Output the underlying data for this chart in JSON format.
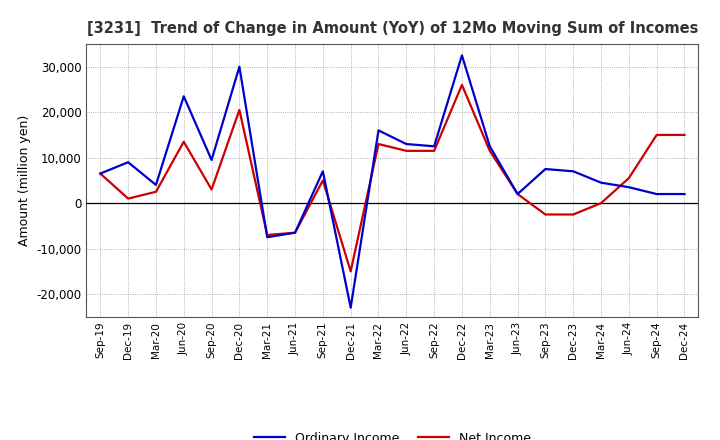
{
  "title": "[3231]  Trend of Change in Amount (YoY) of 12Mo Moving Sum of Incomes",
  "ylabel": "Amount (million yen)",
  "x_labels": [
    "Sep-19",
    "Dec-19",
    "Mar-20",
    "Jun-20",
    "Sep-20",
    "Dec-20",
    "Mar-21",
    "Jun-21",
    "Sep-21",
    "Dec-21",
    "Mar-22",
    "Jun-22",
    "Sep-22",
    "Dec-22",
    "Mar-23",
    "Jun-23",
    "Sep-23",
    "Dec-23",
    "Mar-24",
    "Jun-24",
    "Sep-24",
    "Dec-24"
  ],
  "ordinary_income": [
    6500,
    9000,
    4000,
    23500,
    9500,
    30000,
    -7500,
    -6500,
    7000,
    -23000,
    16000,
    13000,
    12500,
    32500,
    12500,
    2000,
    7500,
    7000,
    4500,
    3500,
    2000,
    2000
  ],
  "net_income": [
    6500,
    1000,
    2500,
    13500,
    3000,
    20500,
    -7000,
    -6500,
    5000,
    -15000,
    13000,
    11500,
    11500,
    26000,
    11500,
    2000,
    -2500,
    -2500,
    0,
    5500,
    15000,
    15000
  ],
  "ordinary_color": "#0000cc",
  "net_color": "#cc0000",
  "background_color": "#ffffff",
  "grid_color": "#999999",
  "ylim": [
    -25000,
    35000
  ],
  "yticks": [
    -20000,
    -10000,
    0,
    10000,
    20000,
    30000
  ],
  "legend_labels": [
    "Ordinary Income",
    "Net Income"
  ],
  "title_color": "#333333"
}
